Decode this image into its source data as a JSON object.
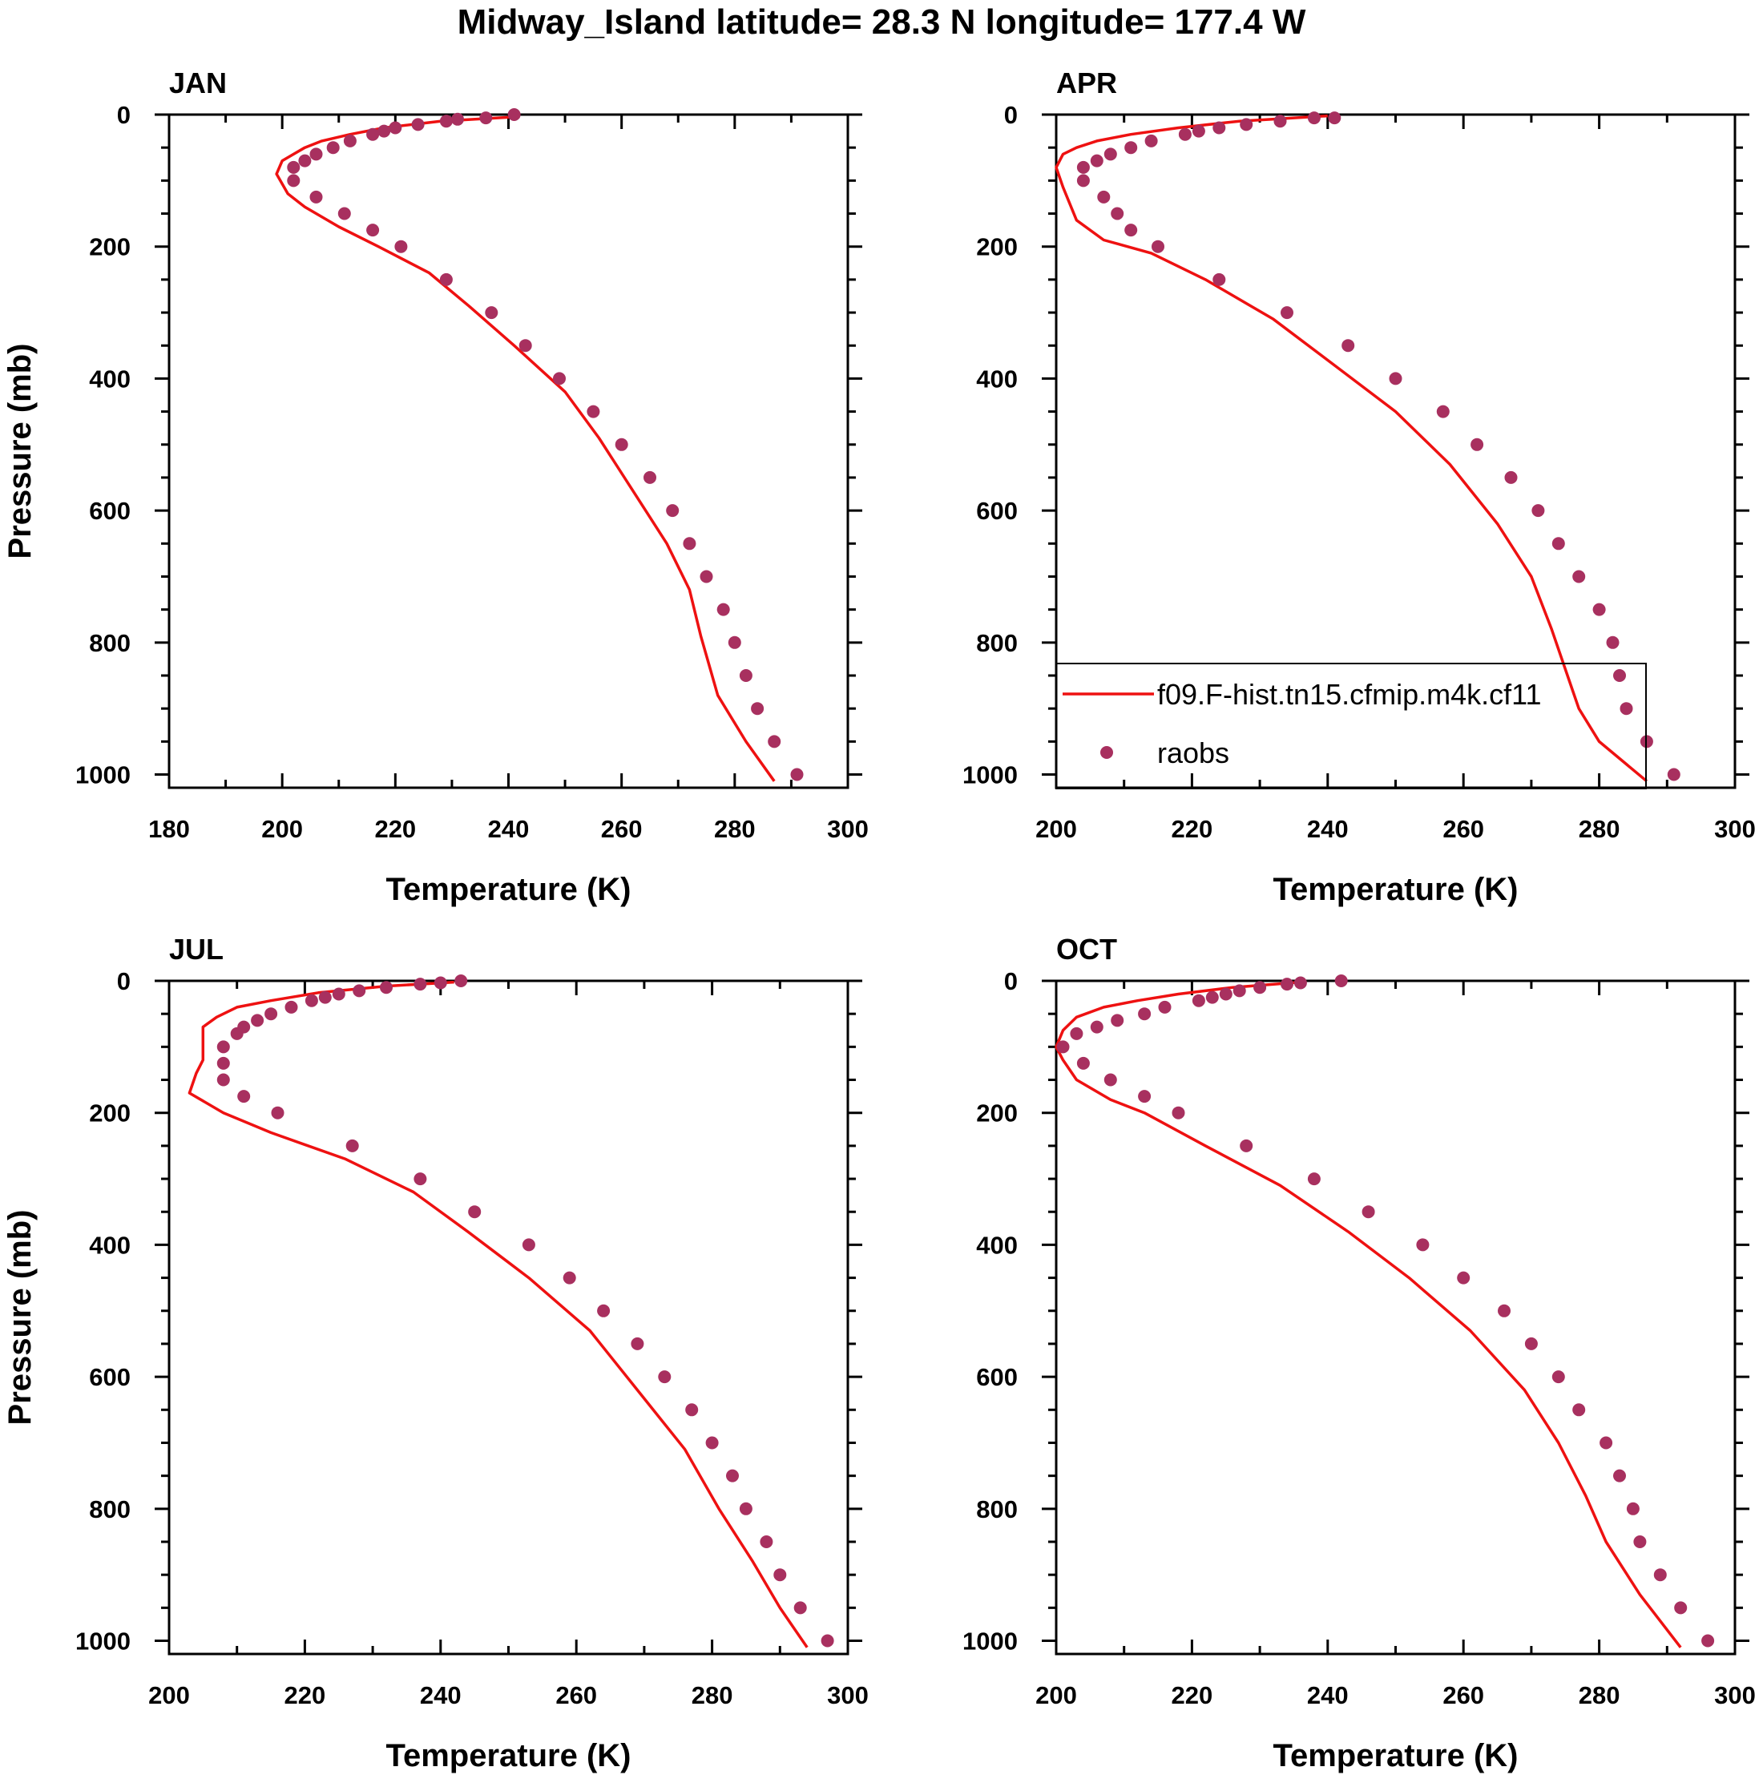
{
  "figure": {
    "title": "Midway_Island  latitude= 28.3 N longitude= 177.4 W"
  },
  "colors": {
    "model": "#ee1111",
    "obs": "#a8305f",
    "axis": "#000000"
  },
  "legend": {
    "entries": [
      {
        "label": "f09.F-hist.tn15.cfmip.m4k.cf11",
        "kind": "line"
      },
      {
        "label": "raobs",
        "kind": "marker"
      }
    ]
  },
  "chart_data": [
    {
      "type": "line",
      "title": "JAN",
      "xlabel": "Temperature (K)",
      "ylabel": "Pressure (mb)",
      "xlim": [
        180,
        300
      ],
      "ylim": [
        0,
        1020
      ],
      "y_inverted": true,
      "xticks": [
        180,
        200,
        220,
        240,
        260,
        280,
        300
      ],
      "yticks": [
        0,
        200,
        400,
        600,
        800,
        1000
      ],
      "series": [
        {
          "name": "f09.F-hist.tn15.cfmip.m4k.cf11",
          "style": "line",
          "x": [
            242,
            228,
            218,
            212,
            207,
            204,
            202,
            200,
            199,
            201,
            204,
            210,
            217,
            226,
            233,
            241,
            250,
            256,
            262,
            268,
            272,
            274,
            277,
            282,
            287
          ],
          "y": [
            3,
            10,
            20,
            30,
            40,
            50,
            60,
            70,
            90,
            120,
            140,
            170,
            200,
            240,
            290,
            350,
            420,
            490,
            570,
            650,
            720,
            790,
            880,
            950,
            1010
          ]
        },
        {
          "name": "raobs",
          "style": "marker",
          "x": [
            241,
            236,
            231,
            229,
            224,
            220,
            218,
            216,
            212,
            209,
            206,
            204,
            202,
            202,
            206,
            211,
            216,
            221,
            229,
            237,
            243,
            249,
            255,
            260,
            265,
            269,
            272,
            275,
            278,
            280,
            282,
            284,
            287,
            291
          ],
          "y": [
            0,
            5,
            7,
            10,
            15,
            20,
            25,
            30,
            40,
            50,
            60,
            70,
            80,
            100,
            125,
            150,
            175,
            200,
            250,
            300,
            350,
            400,
            450,
            500,
            550,
            600,
            650,
            700,
            750,
            800,
            850,
            900,
            950,
            1000
          ]
        }
      ]
    },
    {
      "type": "line",
      "title": "APR",
      "xlabel": "Temperature (K)",
      "ylabel": "",
      "xlim": [
        200,
        300
      ],
      "ylim": [
        0,
        1020
      ],
      "y_inverted": true,
      "xticks": [
        200,
        220,
        240,
        260,
        280,
        300
      ],
      "yticks": [
        0,
        200,
        400,
        600,
        800,
        1000
      ],
      "series": [
        {
          "name": "f09.F-hist.tn15.cfmip.m4k.cf11",
          "style": "line",
          "x": [
            240,
            227,
            218,
            211,
            206,
            203,
            201,
            200,
            201,
            203,
            207,
            214,
            222,
            232,
            241,
            250,
            258,
            265,
            270,
            273,
            276,
            277,
            280,
            287
          ],
          "y": [
            2,
            10,
            20,
            30,
            40,
            50,
            60,
            80,
            110,
            160,
            190,
            210,
            250,
            310,
            380,
            450,
            530,
            620,
            700,
            780,
            870,
            900,
            950,
            1010
          ]
        },
        {
          "name": "raobs",
          "style": "marker",
          "x": [
            241,
            238,
            233,
            228,
            224,
            221,
            219,
            214,
            211,
            208,
            206,
            204,
            204,
            207,
            209,
            211,
            215,
            224,
            234,
            243,
            250,
            257,
            262,
            267,
            271,
            274,
            277,
            280,
            282,
            283,
            284,
            287,
            291
          ],
          "y": [
            5,
            5,
            10,
            15,
            20,
            25,
            30,
            40,
            50,
            60,
            70,
            80,
            100,
            125,
            150,
            175,
            200,
            250,
            300,
            350,
            400,
            450,
            500,
            550,
            600,
            650,
            700,
            750,
            800,
            850,
            900,
            950,
            1000
          ]
        }
      ]
    },
    {
      "type": "line",
      "title": "JUL",
      "xlabel": "Temperature (K)",
      "ylabel": "Pressure (mb)",
      "xlim": [
        200,
        300
      ],
      "ylim": [
        0,
        1020
      ],
      "y_inverted": true,
      "xticks": [
        200,
        220,
        240,
        260,
        280,
        300
      ],
      "yticks": [
        0,
        200,
        400,
        600,
        800,
        1000
      ],
      "series": [
        {
          "name": "f09.F-hist.tn15.cfmip.m4k.cf11",
          "style": "line",
          "x": [
            242,
            232,
            222,
            215,
            210,
            207,
            205,
            205,
            205,
            204,
            203,
            208,
            215,
            226,
            236,
            244,
            253,
            262,
            269,
            276,
            281,
            286,
            290,
            294
          ],
          "y": [
            2,
            8,
            18,
            30,
            40,
            55,
            70,
            90,
            120,
            140,
            170,
            200,
            230,
            270,
            320,
            380,
            450,
            530,
            620,
            710,
            800,
            880,
            950,
            1010
          ]
        },
        {
          "name": "raobs",
          "style": "marker",
          "x": [
            243,
            240,
            237,
            232,
            228,
            225,
            223,
            221,
            218,
            215,
            213,
            211,
            210,
            208,
            208,
            208,
            211,
            216,
            227,
            237,
            245,
            253,
            259,
            264,
            269,
            273,
            277,
            280,
            283,
            285,
            288,
            290,
            293,
            297
          ],
          "y": [
            0,
            3,
            5,
            10,
            15,
            20,
            25,
            30,
            40,
            50,
            60,
            70,
            80,
            100,
            125,
            150,
            175,
            200,
            250,
            300,
            350,
            400,
            450,
            500,
            550,
            600,
            650,
            700,
            750,
            800,
            850,
            900,
            950,
            1000
          ]
        }
      ]
    },
    {
      "type": "line",
      "title": "OCT",
      "xlabel": "Temperature (K)",
      "ylabel": "",
      "xlim": [
        200,
        300
      ],
      "ylim": [
        0,
        1020
      ],
      "y_inverted": true,
      "xticks": [
        200,
        220,
        240,
        260,
        280,
        300
      ],
      "yticks": [
        0,
        200,
        400,
        600,
        800,
        1000
      ],
      "series": [
        {
          "name": "f09.F-hist.tn15.cfmip.m4k.cf11",
          "style": "line",
          "x": [
            236,
            226,
            218,
            212,
            207,
            203,
            201,
            200,
            201,
            203,
            208,
            213,
            222,
            233,
            243,
            252,
            261,
            269,
            274,
            278,
            281,
            286,
            292
          ],
          "y": [
            2,
            10,
            20,
            30,
            40,
            55,
            75,
            100,
            120,
            150,
            180,
            200,
            250,
            310,
            380,
            450,
            530,
            620,
            700,
            780,
            850,
            930,
            1010
          ]
        },
        {
          "name": "raobs",
          "style": "marker",
          "x": [
            242,
            236,
            234,
            230,
            227,
            225,
            223,
            221,
            216,
            213,
            209,
            206,
            203,
            201,
            204,
            208,
            213,
            218,
            228,
            238,
            246,
            254,
            260,
            266,
            270,
            274,
            277,
            281,
            283,
            285,
            286,
            289,
            292,
            296
          ],
          "y": [
            0,
            3,
            5,
            10,
            15,
            20,
            25,
            30,
            40,
            50,
            60,
            70,
            80,
            100,
            125,
            150,
            175,
            200,
            250,
            300,
            350,
            400,
            450,
            500,
            550,
            600,
            650,
            700,
            750,
            800,
            850,
            900,
            950,
            1000
          ]
        }
      ]
    }
  ]
}
